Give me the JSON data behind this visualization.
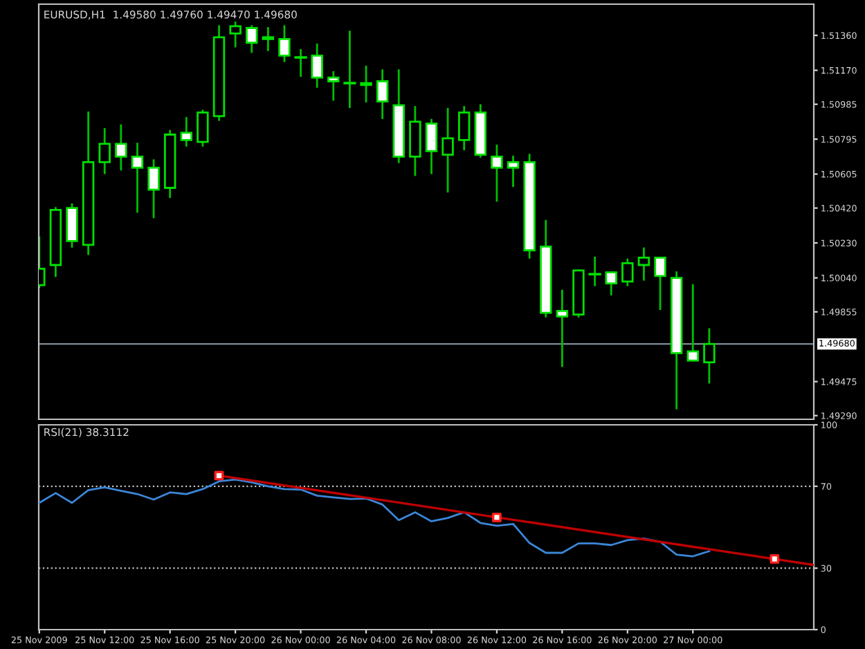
{
  "chart_data": [
    {
      "type": "candlestick",
      "title": "EURUSD,H1  1.49580 1.49760 1.49470 1.49680",
      "x": [
        "2009-11-25T08:00",
        "2009-11-25T09:00",
        "2009-11-25T10:00",
        "2009-11-25T11:00",
        "2009-11-25T12:00",
        "2009-11-25T13:00",
        "2009-11-25T14:00",
        "2009-11-25T15:00",
        "2009-11-25T16:00",
        "2009-11-25T17:00",
        "2009-11-25T18:00",
        "2009-11-25T19:00",
        "2009-11-25T20:00",
        "2009-11-25T21:00",
        "2009-11-25T22:00",
        "2009-11-25T23:00",
        "2009-11-26T00:00",
        "2009-11-26T01:00",
        "2009-11-26T02:00",
        "2009-11-26T03:00",
        "2009-11-26T04:00",
        "2009-11-26T05:00",
        "2009-11-26T06:00",
        "2009-11-26T07:00",
        "2009-11-26T08:00",
        "2009-11-26T09:00",
        "2009-11-26T10:00",
        "2009-11-26T11:00",
        "2009-11-26T12:00",
        "2009-11-26T13:00",
        "2009-11-26T14:00",
        "2009-11-26T15:00",
        "2009-11-26T16:00",
        "2009-11-26T17:00",
        "2009-11-26T18:00",
        "2009-11-26T19:00",
        "2009-11-26T20:00",
        "2009-11-26T21:00",
        "2009-11-26T22:00",
        "2009-11-26T23:00",
        "2009-11-27T00:00",
        "2009-11-27T01:00"
      ],
      "ohlc": [
        [
          1.5,
          1.5026,
          1.4999,
          1.5009
        ],
        [
          1.5011,
          1.5042,
          1.5005,
          1.5041
        ],
        [
          1.5042,
          1.5044,
          1.5021,
          1.5024
        ],
        [
          1.5022,
          1.5094,
          1.5017,
          1.5067
        ],
        [
          1.5067,
          1.5085,
          1.5061,
          1.5077
        ],
        [
          1.5077,
          1.5087,
          1.5063,
          1.507
        ],
        [
          1.507,
          1.5077,
          1.504,
          1.5064
        ],
        [
          1.5064,
          1.5068,
          1.5037,
          1.5052
        ],
        [
          1.5053,
          1.5084,
          1.5048,
          1.5082
        ],
        [
          1.5083,
          1.5091,
          1.5076,
          1.5079
        ],
        [
          1.5078,
          1.5095,
          1.5076,
          1.5094
        ],
        [
          1.5092,
          1.5141,
          1.509,
          1.5135
        ],
        [
          1.5137,
          1.5143,
          1.513,
          1.5141
        ],
        [
          1.514,
          1.5141,
          1.5127,
          1.5132
        ],
        [
          1.5134,
          1.514,
          1.5128,
          1.5135
        ],
        [
          1.5134,
          1.5141,
          1.5122,
          1.5125
        ],
        [
          1.5124,
          1.5128,
          1.5114,
          1.5124
        ],
        [
          1.5125,
          1.5131,
          1.5108,
          1.5113
        ],
        [
          1.5113,
          1.5116,
          1.5101,
          1.5111
        ],
        [
          1.511,
          1.5138,
          1.5097,
          1.511
        ],
        [
          1.511,
          1.5119,
          1.51,
          1.5109
        ],
        [
          1.5111,
          1.5117,
          1.5091,
          1.51
        ],
        [
          1.5098,
          1.5117,
          1.5067,
          1.507
        ],
        [
          1.507,
          1.5097,
          1.506,
          1.5089
        ],
        [
          1.5088,
          1.509,
          1.5061,
          1.5073
        ],
        [
          1.5071,
          1.5096,
          1.5051,
          1.508
        ],
        [
          1.5079,
          1.5097,
          1.5074,
          1.5094
        ],
        [
          1.5094,
          1.5098,
          1.507,
          1.5071
        ],
        [
          1.507,
          1.5076,
          1.5046,
          1.5064
        ],
        [
          1.5067,
          1.507,
          1.5054,
          1.5064
        ],
        [
          1.5067,
          1.5071,
          1.5015,
          1.5019
        ],
        [
          1.5021,
          1.5035,
          1.4983,
          1.4985
        ],
        [
          1.4986,
          1.4997,
          1.4956,
          1.4983
        ],
        [
          1.4984,
          1.5008,
          1.4983,
          1.5008
        ],
        [
          1.5006,
          1.5015,
          1.5,
          1.5006
        ],
        [
          1.5007,
          1.5007,
          1.4995,
          1.5001
        ],
        [
          1.5002,
          1.5014,
          1.5,
          1.5012
        ],
        [
          1.5011,
          1.502,
          1.5003,
          1.5015
        ],
        [
          1.5015,
          1.5015,
          1.4987,
          1.5005
        ],
        [
          1.5004,
          1.5007,
          1.4933,
          1.4963
        ],
        [
          1.4964,
          1.5,
          1.4959,
          1.4959
        ],
        [
          1.4958,
          1.4976,
          1.4947,
          1.4968
        ]
      ],
      "xlim": [
        "2009-11-25T07:58",
        "2009-11-27T07:24"
      ],
      "ylim": [
        1.4927,
        1.5153
      ],
      "yticks": [
        {
          "value": 1.5136,
          "label": "1.51360"
        },
        {
          "value": 1.5117,
          "label": "1.51170"
        },
        {
          "value": 1.50985,
          "label": "1.50985"
        },
        {
          "value": 1.50795,
          "label": "1.50795"
        },
        {
          "value": 1.50605,
          "label": "1.50605"
        },
        {
          "value": 1.5042,
          "label": "1.50420"
        },
        {
          "value": 1.5023,
          "label": "1.50230"
        },
        {
          "value": 1.5004,
          "label": "1.50040"
        },
        {
          "value": 1.49855,
          "label": "1.49855"
        },
        {
          "value": 1.49475,
          "label": "1.49475"
        },
        {
          "value": 1.4929,
          "label": "1.49290"
        }
      ],
      "ref_lines": [
        {
          "axis": "y",
          "value": 1.4968,
          "label": "1.49680",
          "color": "#7f8c99",
          "line_style": "solid"
        }
      ],
      "tick_labels": "y"
    },
    {
      "type": "line",
      "title": "RSI(21) 38.3112",
      "x": [
        "2009-11-25T08:00",
        "2009-11-25T09:00",
        "2009-11-25T10:00",
        "2009-11-25T11:00",
        "2009-11-25T12:00",
        "2009-11-25T13:00",
        "2009-11-25T14:00",
        "2009-11-25T15:00",
        "2009-11-25T16:00",
        "2009-11-25T17:00",
        "2009-11-25T18:00",
        "2009-11-25T19:00",
        "2009-11-25T20:00",
        "2009-11-25T21:00",
        "2009-11-25T22:00",
        "2009-11-25T23:00",
        "2009-11-26T00:00",
        "2009-11-26T01:00",
        "2009-11-26T02:00",
        "2009-11-26T03:00",
        "2009-11-26T04:00",
        "2009-11-26T05:00",
        "2009-11-26T06:00",
        "2009-11-26T07:00",
        "2009-11-26T08:00",
        "2009-11-26T09:00",
        "2009-11-26T10:00",
        "2009-11-26T11:00",
        "2009-11-26T12:00",
        "2009-11-26T13:00",
        "2009-11-26T14:00",
        "2009-11-26T15:00",
        "2009-11-26T16:00",
        "2009-11-26T17:00",
        "2009-11-26T18:00",
        "2009-11-26T19:00",
        "2009-11-26T20:00",
        "2009-11-26T21:00",
        "2009-11-26T22:00",
        "2009-11-26T23:00",
        "2009-11-27T00:00",
        "2009-11-27T01:00"
      ],
      "series": [
        {
          "color": "#3c86d8",
          "values": [
            61.9,
            66.7,
            61.9,
            68.1,
            69.5,
            67.8,
            66.2,
            63.5,
            67.0,
            66.2,
            68.6,
            72.4,
            73.3,
            71.9,
            70.0,
            68.6,
            68.4,
            65.4,
            64.6,
            63.8,
            64.0,
            61.1,
            53.5,
            57.3,
            52.9,
            54.5,
            57.3,
            52.1,
            50.7,
            51.6,
            42.3,
            37.5,
            37.5,
            42.1,
            42.1,
            41.3,
            43.7,
            44.5,
            42.9,
            36.6,
            35.8,
            38.3
          ]
        },
        {
          "type": "line",
          "color": "#c00000",
          "x": [
            "2009-11-25T19:00",
            "2009-11-27T07:24"
          ],
          "values": [
            75.2,
            31.6
          ]
        },
        {
          "type": "scatter",
          "color": "#ff2020",
          "marker": "square",
          "x": [
            "2009-11-25T19:00",
            "2009-11-26T12:00",
            "2009-11-27T05:00"
          ],
          "values": [
            75.2,
            54.8,
            34.5
          ]
        }
      ],
      "xlim": [
        "2009-11-25T07:58",
        "2009-11-27T07:24"
      ],
      "ylim": [
        0,
        100
      ],
      "yticks": [
        0,
        30,
        70,
        100
      ],
      "xticks": [
        {
          "value": "2009-11-25T08:00",
          "label": "25 Nov 2009"
        },
        {
          "value": "2009-11-25T12:00",
          "label": "25 Nov 12:00"
        },
        {
          "value": "2009-11-25T16:00",
          "label": "25 Nov 16:00"
        },
        {
          "value": "2009-11-25T20:00",
          "label": "25 Nov 20:00"
        },
        {
          "value": "2009-11-26T00:00",
          "label": "26 Nov 00:00"
        },
        {
          "value": "2009-11-26T04:00",
          "label": "26 Nov 04:00"
        },
        {
          "value": "2009-11-26T08:00",
          "label": "26 Nov 08:00"
        },
        {
          "value": "2009-11-26T12:00",
          "label": "26 Nov 12:00"
        },
        {
          "value": "2009-11-26T16:00",
          "label": "26 Nov 16:00"
        },
        {
          "value": "2009-11-26T20:00",
          "label": "26 Nov 20:00"
        },
        {
          "value": "2009-11-27T00:00",
          "label": "27 Nov 00:00"
        }
      ],
      "ref_lines": [
        {
          "axis": "y",
          "value": 70,
          "color": "#c0c0c0",
          "line_style": "dotted"
        },
        {
          "axis": "y",
          "value": 30,
          "color": "#c0c0c0",
          "line_style": "dotted"
        }
      ]
    }
  ]
}
